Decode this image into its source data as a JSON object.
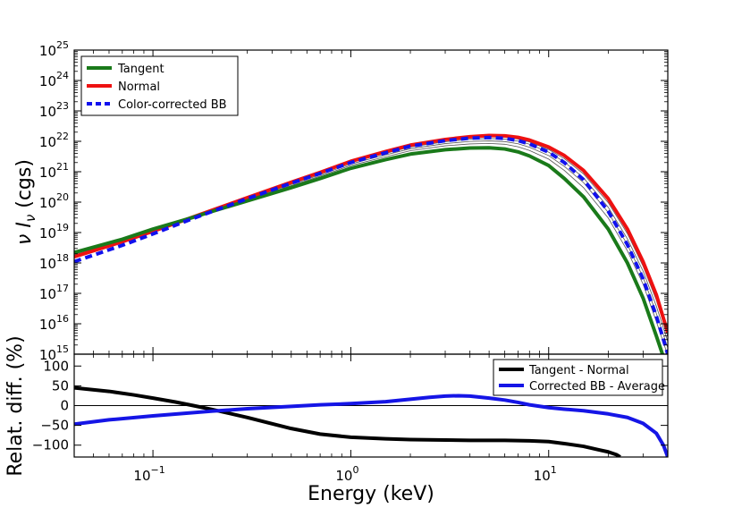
{
  "chart_data": [
    {
      "type": "line",
      "xscale": "log",
      "yscale": "log",
      "xlim": [
        0.04,
        40
      ],
      "ylim": [
        1000000000000000.0,
        1e+25
      ],
      "ylabel": "ν I_ν (cgs)",
      "ytick_exponents": [
        "15",
        "16",
        "17",
        "18",
        "19",
        "20",
        "21",
        "22",
        "23",
        "24",
        "25"
      ],
      "ytick_base": "10",
      "legend": {
        "placement": "top-left",
        "entries": [
          "Tangent",
          "Normal",
          "Color-corrected BB"
        ]
      },
      "series": [
        {
          "name": "Tangent",
          "color": "#1a7a1a",
          "style": "solid",
          "x": [
            0.04,
            0.07,
            0.1,
            0.15,
            0.2,
            0.3,
            0.5,
            0.7,
            1,
            1.5,
            2,
            3,
            4,
            5,
            6,
            7,
            8,
            10,
            12,
            15,
            20,
            25,
            30,
            35,
            40
          ],
          "y": [
            2.2e+18,
            6e+18,
            1.3e+19,
            2.8e+19,
            5e+19,
            1.1e+20,
            3e+20,
            6e+20,
            1.3e+21,
            2.5e+21,
            3.8e+21,
            5.3e+21,
            6e+21,
            6.1e+21,
            5.6e+21,
            4.5e+21,
            3.3e+21,
            1.6e+21,
            6e+20,
            1.5e+20,
            1.3e+19,
            1e+18,
            7e+16,
            4000000000000000.0,
            300000000000000.0
          ]
        },
        {
          "name": "Normal",
          "color": "#ee1111",
          "style": "solid",
          "x": [
            0.04,
            0.07,
            0.1,
            0.15,
            0.2,
            0.3,
            0.5,
            0.7,
            1,
            1.5,
            2,
            3,
            4,
            5,
            6,
            7,
            8,
            10,
            12,
            15,
            20,
            25,
            30,
            35,
            40
          ],
          "y": [
            1.6e+18,
            5e+18,
            1.1e+19,
            2.8e+19,
            5.5e+19,
            1.4e+20,
            4.5e+20,
            9.5e+20,
            2.2e+21,
            4.6e+21,
            7.5e+21,
            1.15e+22,
            1.42e+22,
            1.55e+22,
            1.52e+22,
            1.35e+22,
            1.1e+22,
            6.5e+21,
            3.4e+21,
            1.1e+21,
            1.3e+20,
            1.3e+19,
            1.1e+18,
            9e+16,
            5000000000000000.0
          ]
        },
        {
          "name": "Color-corrected BB",
          "color": "#1111ee",
          "style": "dashed",
          "x": [
            0.04,
            0.07,
            0.1,
            0.15,
            0.2,
            0.3,
            0.5,
            0.7,
            1,
            1.5,
            2,
            3,
            4,
            5,
            6,
            7,
            8,
            10,
            12,
            15,
            20,
            25,
            30,
            35,
            40
          ],
          "y": [
            1.1e+18,
            3.8e+18,
            9e+18,
            2.5e+19,
            5e+19,
            1.3e+20,
            4.2e+20,
            8.8e+20,
            2e+21,
            4.2e+21,
            6.9e+21,
            1.05e+22,
            1.27e+22,
            1.33e+22,
            1.25e+22,
            1.06e+22,
            8.2e+21,
            4.4e+21,
            2e+21,
            5.5e+20,
            5e+19,
            4e+18,
            3e+17,
            1.8e+16,
            1000000000000000.0
          ]
        }
      ],
      "thin_lines": [
        {
          "color": "#555555",
          "x": [
            0.04,
            0.07,
            0.1,
            0.15,
            0.2,
            0.3,
            0.5,
            0.7,
            1,
            1.5,
            2,
            3,
            4,
            5,
            6,
            7,
            8,
            10,
            12,
            15,
            20,
            25,
            30,
            35,
            40
          ],
          "y": [
            2e+18,
            5.7e+18,
            1.25e+19,
            2.8e+19,
            5.2e+19,
            1.2e+20,
            3.5e+20,
            7.2e+20,
            1.6e+21,
            3.1e+21,
            4.9e+21,
            7.1e+21,
            8.2e+21,
            8.5e+21,
            8e+21,
            6.6e+21,
            5e+21,
            2.6e+21,
            1.1e+21,
            3e+20,
            3e+19,
            2.5e+18,
            2e+17,
            1.2e+16,
            900000000000000.0
          ]
        },
        {
          "color": "#555555",
          "x": [
            0.04,
            0.07,
            0.1,
            0.15,
            0.2,
            0.3,
            0.5,
            0.7,
            1,
            1.5,
            2,
            3,
            4,
            5,
            6,
            7,
            8,
            10,
            12,
            15,
            20,
            25,
            30,
            35,
            40
          ],
          "y": [
            1.85e+18,
            5.4e+18,
            1.2e+19,
            2.8e+19,
            5.3e+19,
            1.25e+20,
            3.8e+20,
            7.9e+20,
            1.8e+21,
            3.6e+21,
            5.7e+21,
            8.4e+21,
            9.9e+21,
            1.03e+22,
            9.8e+21,
            8.3e+21,
            6.4e+21,
            3.4e+21,
            1.5e+21,
            4.4e+20,
            4.6e+19,
            4e+18,
            3.4e+17,
            2.2e+16,
            1600000000000000.0
          ]
        },
        {
          "color": "#555555",
          "x": [
            0.04,
            0.07,
            0.1,
            0.15,
            0.2,
            0.3,
            0.5,
            0.7,
            1,
            1.5,
            2,
            3,
            4,
            5,
            6,
            7,
            8,
            10,
            12,
            15,
            20,
            25,
            30,
            35,
            40
          ],
          "y": [
            1.75e+18,
            5.2e+18,
            1.15e+19,
            2.8e+19,
            5.4e+19,
            1.3e+20,
            4.1e+20,
            8.6e+20,
            2e+21,
            4e+21,
            6.5e+21,
            9.7e+21,
            1.17e+22,
            1.23e+22,
            1.18e+22,
            1.02e+22,
            8e+21,
            4.4e+21,
            2.1e+21,
            6.3e+20,
            6.8e+19,
            6.2e+18,
            5.4e+17,
            3.8e+16,
            2600000000000000.0
          ]
        },
        {
          "color": "#555555",
          "x": [
            0.04,
            0.07,
            0.1,
            0.15,
            0.2,
            0.3,
            0.5,
            0.7,
            1,
            1.5,
            2,
            3,
            4,
            5,
            6,
            7,
            8,
            10,
            12,
            15,
            20,
            25,
            30,
            35,
            40
          ],
          "y": [
            1.68e+18,
            5.1e+18,
            1.12e+19,
            2.8e+19,
            5.45e+19,
            1.35e+20,
            4.3e+20,
            9.1e+20,
            2.1e+21,
            4.3e+21,
            7e+21,
            1.06e+22,
            1.3e+22,
            1.4e+22,
            1.36e+22,
            1.19e+22,
            9.5e+21,
            5.4e+21,
            2.7e+21,
            8.5e+20,
            9.6e+19,
            9.2e+18,
            7.8e+17,
            6e+16,
            3800000000000000.0
          ]
        }
      ]
    },
    {
      "type": "line",
      "xscale": "log",
      "xlim": [
        0.04,
        40
      ],
      "ylim": [
        -130,
        130
      ],
      "xlabel": "Energy (keV)",
      "ylabel": "Relat. diff. (%)",
      "yticks": [
        100,
        50,
        0,
        -50,
        -100
      ],
      "yticklabels": [
        "100",
        "50",
        "0",
        "−50",
        "−100"
      ],
      "xtick_exponents": [
        "−1",
        "0",
        "1"
      ],
      "xtick_base": "10",
      "zero_line": true,
      "legend": {
        "placement": "top-right",
        "entries": [
          "Tangent - Normal",
          "Corrected BB - Average"
        ]
      },
      "series": [
        {
          "name": "Tangent - Normal",
          "color": "#000000",
          "x": [
            0.04,
            0.06,
            0.08,
            0.1,
            0.13,
            0.16,
            0.2,
            0.3,
            0.5,
            0.7,
            1,
            1.5,
            2,
            3,
            4,
            5,
            6,
            8,
            10,
            12,
            15,
            18,
            20,
            22,
            23
          ],
          "y": [
            45,
            36,
            27,
            19,
            9,
            0,
            -10,
            -30,
            -58,
            -72,
            -80,
            -84,
            -86,
            -87,
            -88,
            -88,
            -88,
            -89,
            -91,
            -96,
            -103,
            -112,
            -117,
            -124,
            -130
          ]
        },
        {
          "name": "Corrected BB - Average",
          "color": "#1515e6",
          "x": [
            0.04,
            0.06,
            0.1,
            0.15,
            0.2,
            0.3,
            0.5,
            0.7,
            1,
            1.5,
            2,
            2.5,
            3,
            3.5,
            4,
            5,
            6,
            7,
            8,
            10,
            12,
            15,
            20,
            25,
            30,
            35,
            38,
            40
          ],
          "y": [
            -47,
            -36,
            -26,
            -19,
            -14,
            -8,
            -2,
            2,
            5,
            10,
            16,
            21,
            24,
            25,
            24,
            19,
            14,
            8,
            2,
            -5,
            -9,
            -13,
            -21,
            -30,
            -45,
            -70,
            -100,
            -130
          ]
        }
      ]
    }
  ]
}
